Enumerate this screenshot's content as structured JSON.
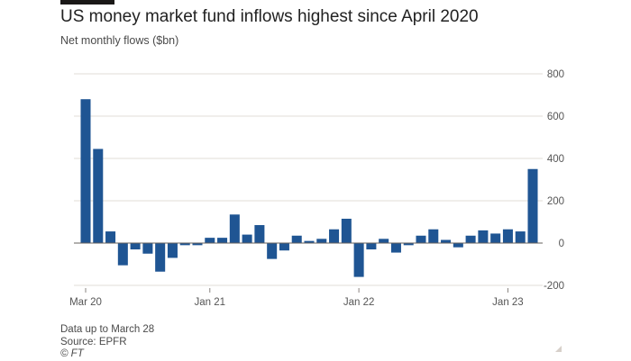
{
  "header": {
    "title": "US money market fund inflows highest since April 2020",
    "subtitle": "Net monthly flows ($bn)"
  },
  "footer": {
    "note": "Data up to March 28",
    "source": "Source: EPFR",
    "copyright": "© FT"
  },
  "colors": {
    "bar": "#1f5593",
    "grid": "#e2ddd7",
    "zero_line": "#66605c",
    "text": "#33302e"
  },
  "chart_data": {
    "type": "bar",
    "title": "US money market fund inflows highest since April 2020",
    "ylabel": "Net monthly flows ($bn)",
    "xlabel": "",
    "ylim": [
      -200,
      800
    ],
    "yticks": [
      800,
      600,
      400,
      200,
      0,
      -200
    ],
    "ytick_labels": [
      "800",
      "600",
      "400",
      "200",
      "0",
      "-200"
    ],
    "y_axis_side": "right",
    "grid": true,
    "categories": [
      "Mar 20",
      "Apr 20",
      "May 20",
      "Jun 20",
      "Jul 20",
      "Aug 20",
      "Sep 20",
      "Oct 20",
      "Nov 20",
      "Dec 20",
      "Jan 21",
      "Feb 21",
      "Mar 21",
      "Apr 21",
      "May 21",
      "Jun 21",
      "Jul 21",
      "Aug 21",
      "Sep 21",
      "Oct 21",
      "Nov 21",
      "Dec 21",
      "Jan 22",
      "Feb 22",
      "Mar 22",
      "Apr 22",
      "May 22",
      "Jun 22",
      "Jul 22",
      "Aug 22",
      "Sep 22",
      "Oct 22",
      "Nov 22",
      "Dec 22",
      "Jan 23",
      "Feb 23",
      "Mar 23"
    ],
    "values": [
      680,
      445,
      55,
      -105,
      -30,
      -50,
      -135,
      -70,
      -10,
      -10,
      25,
      25,
      135,
      40,
      85,
      -75,
      -35,
      35,
      10,
      20,
      65,
      115,
      -160,
      -30,
      20,
      -45,
      -10,
      35,
      65,
      15,
      -20,
      35,
      60,
      45,
      65,
      55,
      350
    ],
    "x_tick_labels": [
      {
        "label": "Mar 20",
        "index": 0
      },
      {
        "label": "Jan 21",
        "index": 10
      },
      {
        "label": "Jan 22",
        "index": 22
      },
      {
        "label": "Jan 23",
        "index": 34
      }
    ]
  }
}
